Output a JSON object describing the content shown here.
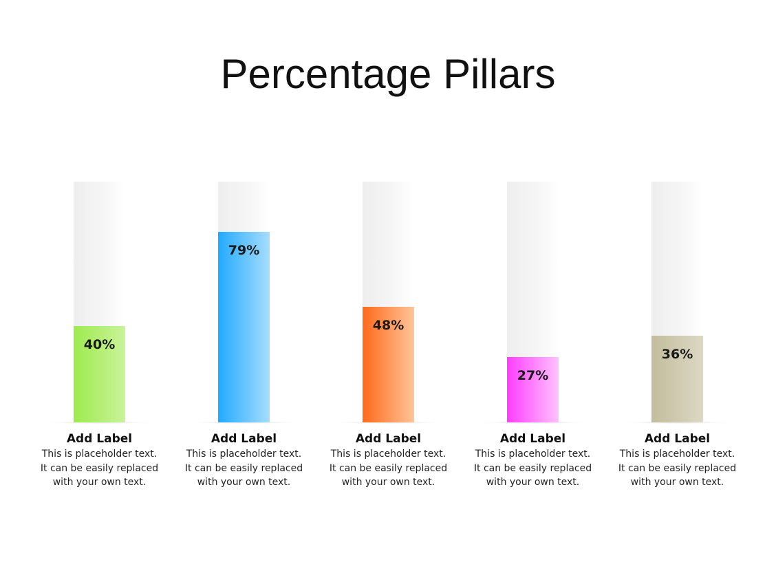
{
  "title": "Percentage Pillars",
  "chart_data": {
    "type": "bar",
    "ylim": [
      0,
      100
    ],
    "categories": [
      "Add Label",
      "Add Label",
      "Add Label",
      "Add Label",
      "Add Label"
    ],
    "values": [
      40,
      79,
      48,
      27,
      36
    ],
    "value_labels": [
      "40%",
      "79%",
      "48%",
      "27%",
      "36%"
    ],
    "colors": [
      [
        "#9eea4f",
        "#c9f39a"
      ],
      [
        "#22aaff",
        "#a6ddff"
      ],
      [
        "#ff6a1a",
        "#ffc499"
      ],
      [
        "#ff3dff",
        "#ffc2ff"
      ],
      [
        "#c2bd9c",
        "#dcd8c4"
      ]
    ],
    "descriptions": [
      [
        "This is placeholder  text.",
        "It can be easily replaced",
        "with your own text."
      ],
      [
        "This is placeholder  text.",
        "It can be easily replaced",
        "with your own text."
      ],
      [
        "This is placeholder  text.",
        "It can be easily replaced",
        "with your own text."
      ],
      [
        "This is placeholder  text.",
        "It can be easily replaced",
        "with your own text."
      ],
      [
        "This is placeholder  text.",
        "It can be easily replaced",
        "with your own text."
      ]
    ]
  }
}
